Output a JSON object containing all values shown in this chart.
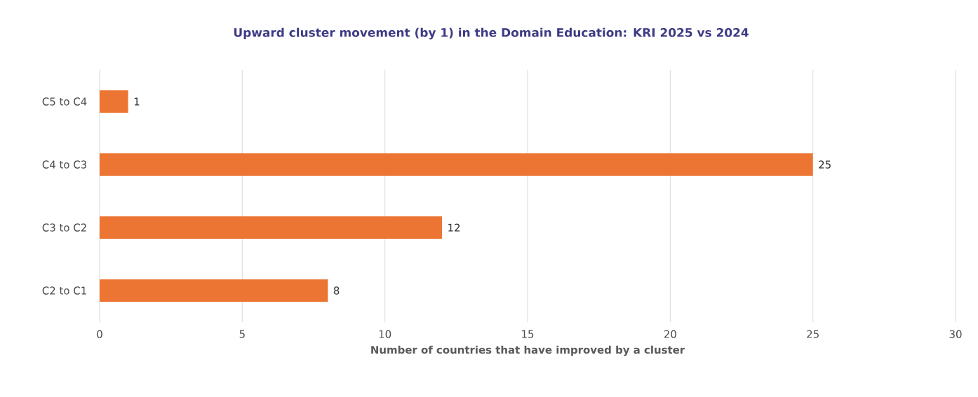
{
  "chart_data": {
    "type": "bar",
    "orientation": "horizontal",
    "title": "Upward cluster movement (by 1) in the Domain Education: KRI 2025 vs 2024",
    "xlabel": "Number of countries that have improved by a cluster",
    "categories": [
      "C5 to C4",
      "C4 to C3",
      "C3 to C2",
      "C2 to C1"
    ],
    "values": [
      1,
      25,
      12,
      8
    ],
    "color": "#ed7533",
    "xlim": [
      0,
      30
    ],
    "xticks": [
      0,
      5,
      10,
      15,
      20,
      25,
      30
    ],
    "grid": "x",
    "data_labels": true
  }
}
